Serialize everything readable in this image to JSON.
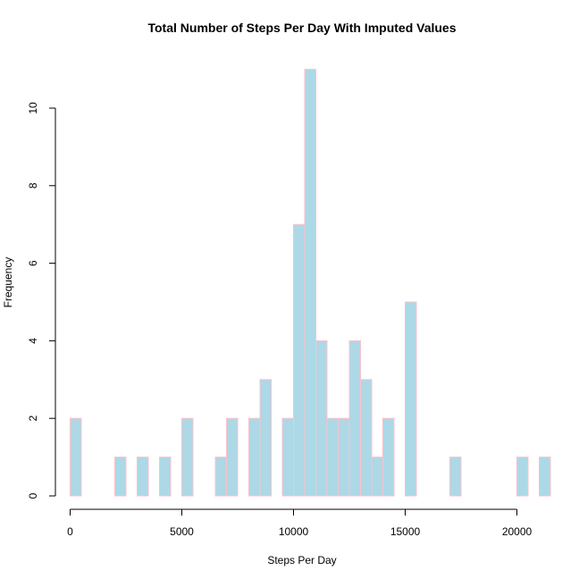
{
  "chart_data": {
    "type": "bar",
    "title": "Total Number of Steps Per Day With Imputed Values",
    "xlabel": "Steps Per Day",
    "ylabel": "Frequency",
    "bin_width": 500,
    "xlim": [
      0,
      21500
    ],
    "ylim": [
      0,
      11
    ],
    "x_ticks": [
      0,
      5000,
      10000,
      15000,
      20000
    ],
    "x_tick_labels": [
      "0",
      "5000",
      "10000",
      "15000",
      "20000"
    ],
    "y_ticks": [
      0,
      2,
      4,
      6,
      8,
      10
    ],
    "y_tick_labels": [
      "0",
      "2",
      "4",
      "6",
      "8",
      "10"
    ],
    "bins": [
      {
        "start": 0,
        "end": 500,
        "count": 2
      },
      {
        "start": 2000,
        "end": 2500,
        "count": 1
      },
      {
        "start": 3000,
        "end": 3500,
        "count": 1
      },
      {
        "start": 4000,
        "end": 4500,
        "count": 1
      },
      {
        "start": 5000,
        "end": 5500,
        "count": 2
      },
      {
        "start": 6500,
        "end": 7000,
        "count": 1
      },
      {
        "start": 7000,
        "end": 7500,
        "count": 2
      },
      {
        "start": 8000,
        "end": 8500,
        "count": 2
      },
      {
        "start": 8500,
        "end": 9000,
        "count": 3
      },
      {
        "start": 9500,
        "end": 10000,
        "count": 2
      },
      {
        "start": 10000,
        "end": 10500,
        "count": 7
      },
      {
        "start": 10500,
        "end": 11000,
        "count": 11
      },
      {
        "start": 11000,
        "end": 11500,
        "count": 4
      },
      {
        "start": 11500,
        "end": 12000,
        "count": 2
      },
      {
        "start": 12000,
        "end": 12500,
        "count": 2
      },
      {
        "start": 12500,
        "end": 13000,
        "count": 4
      },
      {
        "start": 13000,
        "end": 13500,
        "count": 3
      },
      {
        "start": 13500,
        "end": 14000,
        "count": 1
      },
      {
        "start": 14000,
        "end": 14500,
        "count": 2
      },
      {
        "start": 15000,
        "end": 15500,
        "count": 5
      },
      {
        "start": 17000,
        "end": 17500,
        "count": 1
      },
      {
        "start": 20000,
        "end": 20500,
        "count": 1
      },
      {
        "start": 21000,
        "end": 21500,
        "count": 1
      }
    ],
    "colors": {
      "bar_fill": "#add8e6",
      "bar_border": "#ffc0cb",
      "axis": "#000000"
    },
    "grid": false,
    "legend": "none"
  }
}
